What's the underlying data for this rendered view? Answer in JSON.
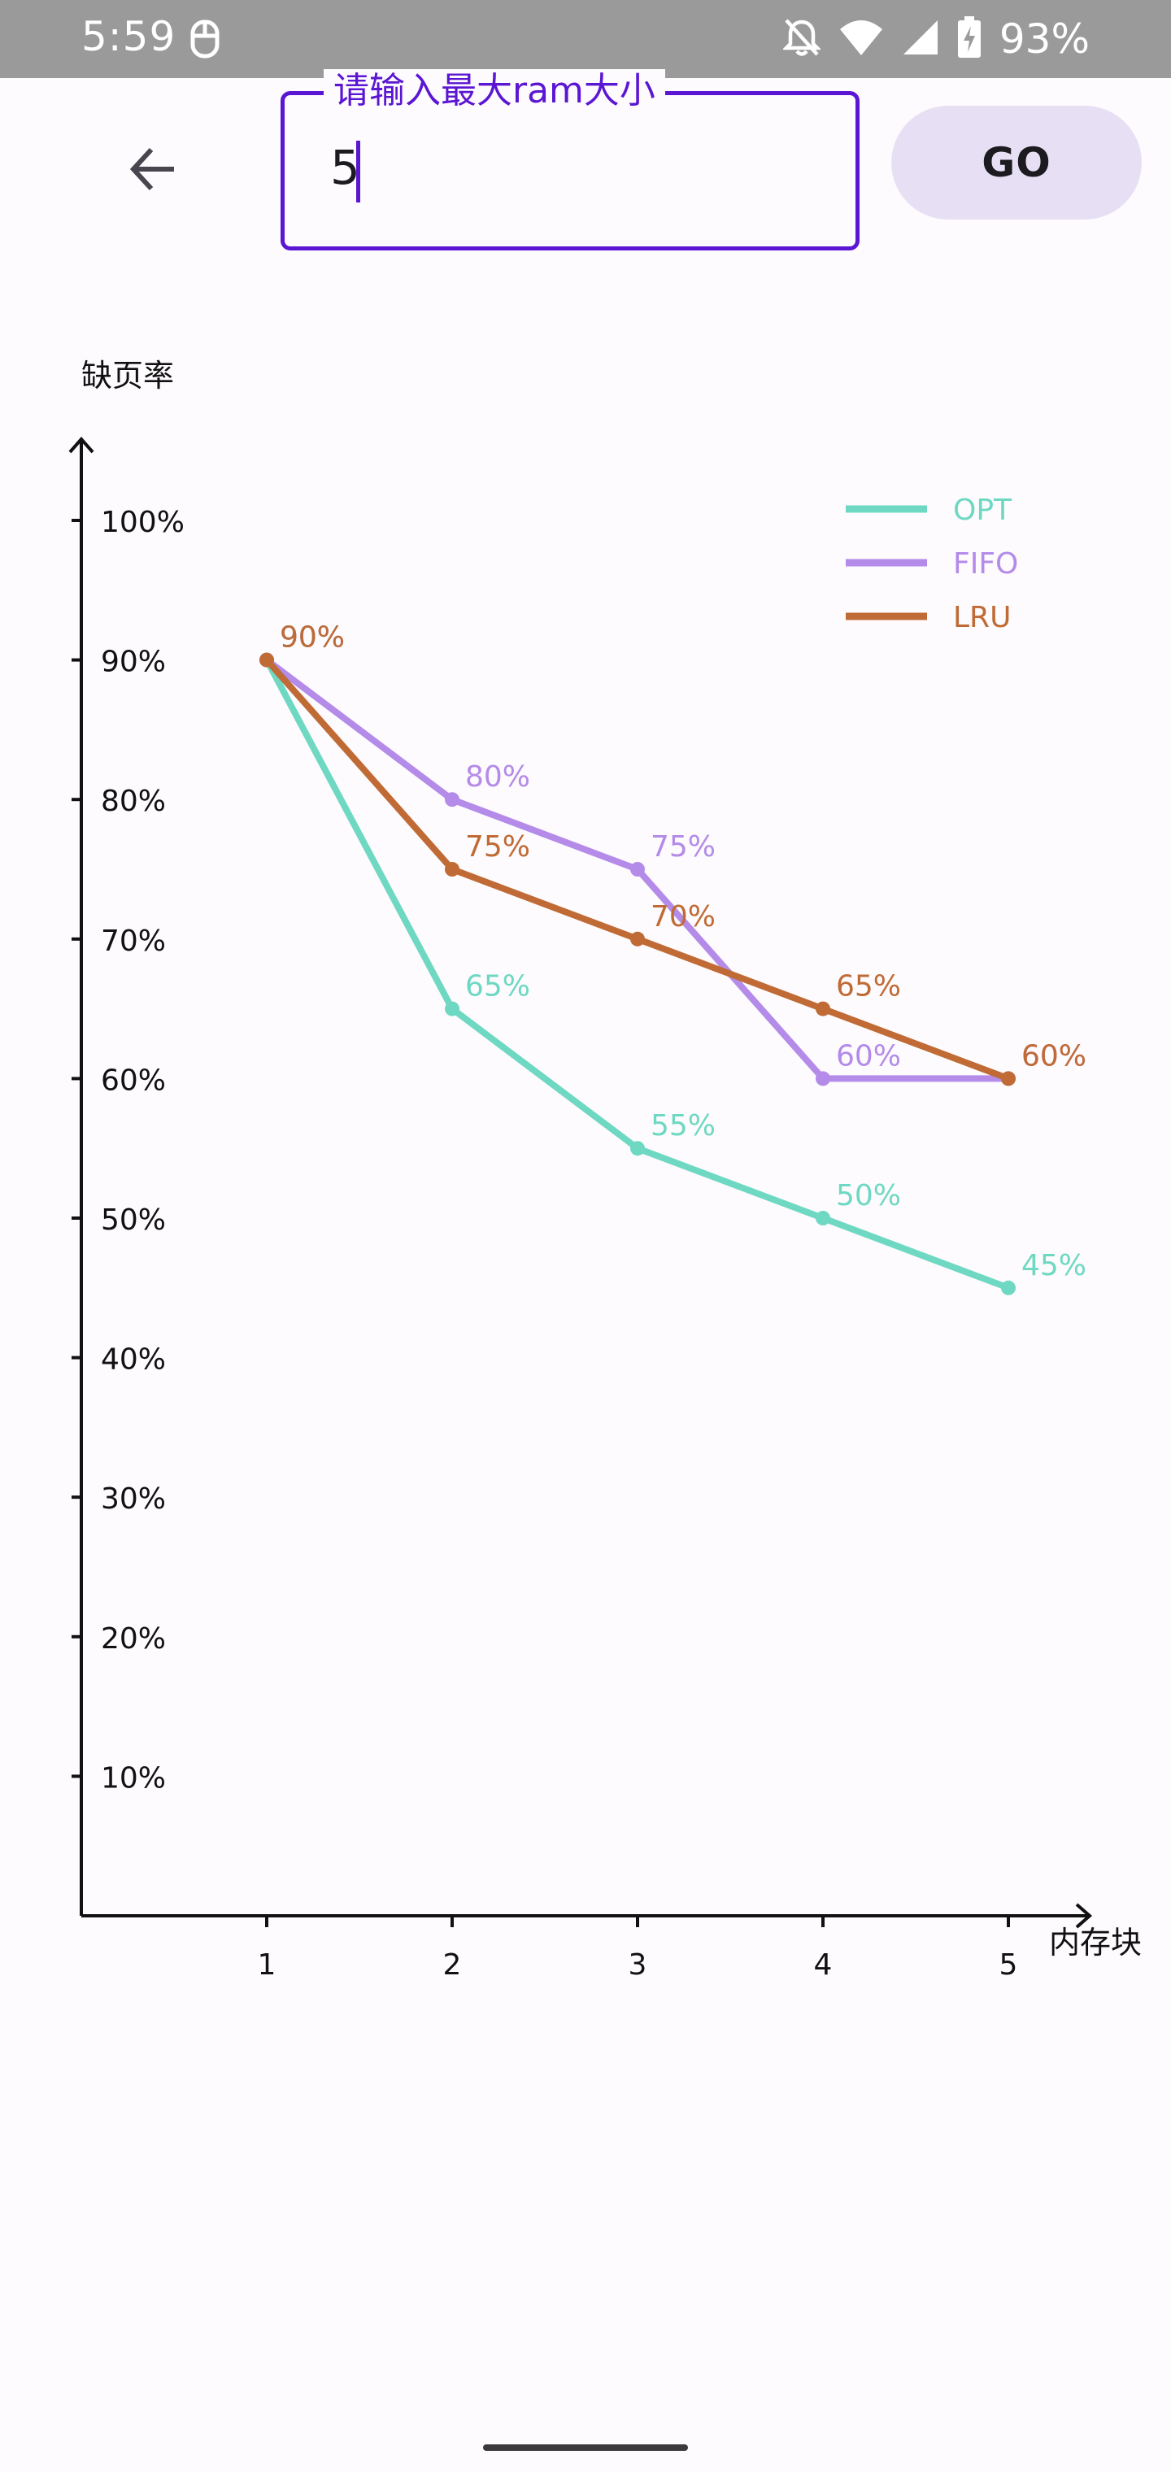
{
  "status_bar": {
    "time": "5:59",
    "battery": "93%"
  },
  "toolbar": {
    "input_label": "请输入最大ram大小",
    "input_value": "5",
    "go_label": "GO"
  },
  "colors": {
    "accent": "#5b16d3",
    "OPT": "#6fd8c3",
    "FIFO": "#b48be9",
    "LRU": "#c06b35"
  },
  "chart_data": {
    "type": "line",
    "ylabel": "缺页率",
    "xlabel": "内存块",
    "x": [
      1,
      2,
      3,
      4,
      5
    ],
    "xticks": [
      "1",
      "2",
      "3",
      "4",
      "5"
    ],
    "ylim": [
      0,
      100
    ],
    "yticks": [
      "10%",
      "20%",
      "30%",
      "40%",
      "50%",
      "60%",
      "70%",
      "80%",
      "90%",
      "100%"
    ],
    "legend_position": "top-right",
    "series": [
      {
        "name": "OPT",
        "color": "#6fd8c3",
        "values": [
          90,
          65,
          55,
          50,
          45
        ],
        "labels": [
          "90%",
          "65%",
          "55%",
          "50%",
          "45%"
        ]
      },
      {
        "name": "FIFO",
        "color": "#b48be9",
        "values": [
          90,
          80,
          75,
          60,
          60
        ],
        "labels": [
          "90%",
          "80%",
          "75%",
          "60%",
          "60%"
        ]
      },
      {
        "name": "LRU",
        "color": "#c06b35",
        "values": [
          90,
          75,
          70,
          65,
          60
        ],
        "labels": [
          "90%",
          "75%",
          "70%",
          "65%",
          "60%"
        ]
      }
    ]
  }
}
